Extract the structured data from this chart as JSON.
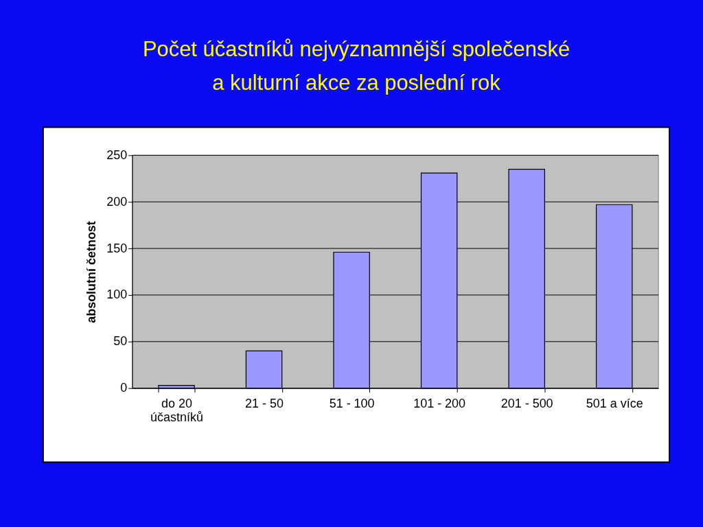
{
  "chart_data": {
    "type": "bar",
    "title": "Počet účastníků nejvýznamnější společenské\na kulturní akce za poslední rok",
    "ylabel": "absolutní četnost",
    "categories": [
      "do 20 účastníků",
      "21 - 50",
      "51 - 100",
      "101 - 200",
      "201 - 500",
      "501 a více"
    ],
    "values": [
      3,
      40,
      146,
      231,
      235,
      197
    ],
    "color": "#9999ff",
    "ylim": [
      0,
      250
    ],
    "yticks": [
      0,
      50,
      100,
      150,
      200,
      250
    ],
    "grid": "y"
  }
}
